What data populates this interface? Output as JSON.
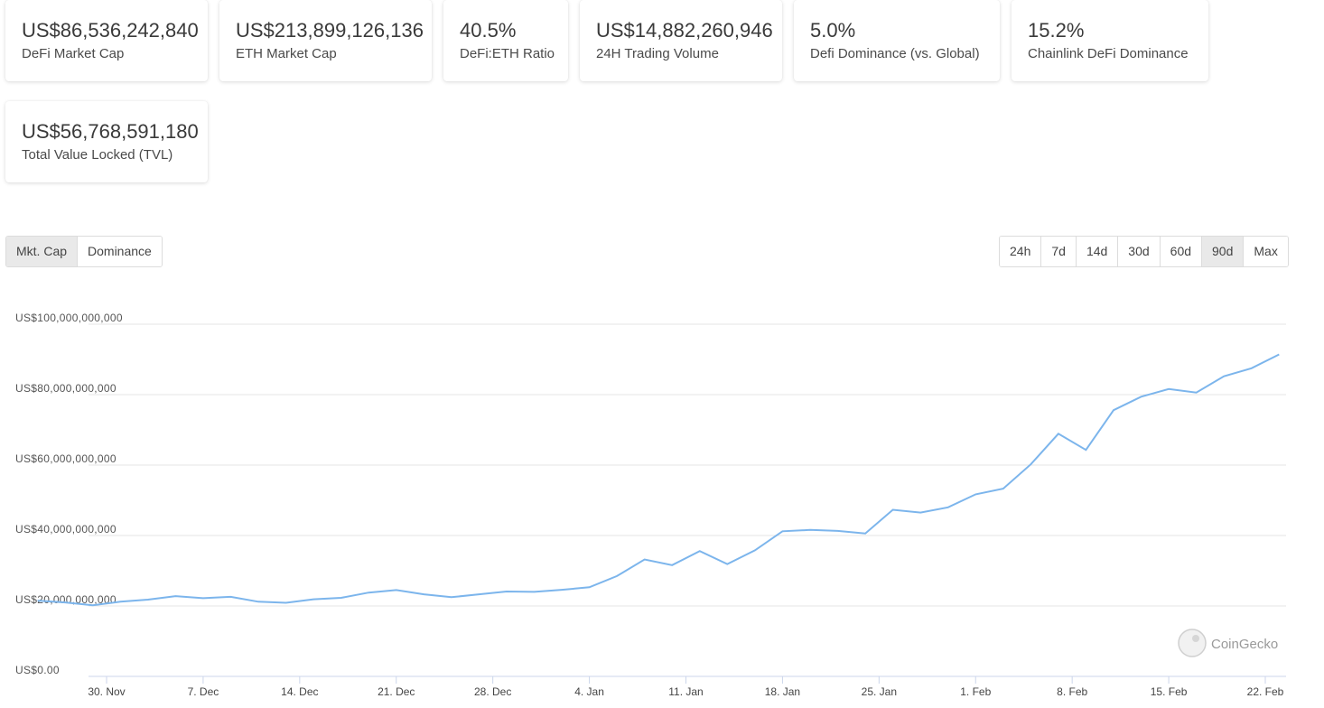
{
  "stats": [
    {
      "value": "US$86,536,242,840",
      "label": "DeFi Market Cap"
    },
    {
      "value": "US$213,899,126,136",
      "label": "ETH Market Cap"
    },
    {
      "value": "40.5%",
      "label": "DeFi:ETH Ratio"
    },
    {
      "value": "US$14,882,260,946",
      "label": "24H Trading Volume"
    },
    {
      "value": "5.0%",
      "label": "Defi Dominance (vs. Global)"
    },
    {
      "value": "15.2%",
      "label": "Chainlink DeFi Dominance"
    },
    {
      "value": "US$56,768,591,180",
      "label": "Total Value Locked (TVL)"
    }
  ],
  "view_tabs": {
    "mkt_cap": "Mkt. Cap",
    "dominance": "Dominance",
    "active": "Mkt. Cap"
  },
  "range_tabs": {
    "items": [
      "24h",
      "7d",
      "14d",
      "30d",
      "60d",
      "90d",
      "Max"
    ],
    "active": "90d"
  },
  "watermark": "CoinGecko",
  "chart_data": {
    "type": "line",
    "title": "",
    "xlabel": "",
    "ylabel": "",
    "y_ticks": [
      "US$0.00",
      "US$20,000,000,000",
      "US$40,000,000,000",
      "US$60,000,000,000",
      "US$80,000,000,000",
      "US$100,000,000,000"
    ],
    "x_ticks": [
      "30. Nov",
      "7. Dec",
      "14. Dec",
      "21. Dec",
      "28. Dec",
      "4. Jan",
      "11. Jan",
      "18. Jan",
      "25. Jan",
      "1. Feb",
      "8. Feb",
      "15. Feb",
      "22. Feb"
    ],
    "ylim": [
      0,
      100000000000
    ],
    "grid": true,
    "line_color": "#7cb5ec",
    "series": [
      {
        "x": [
          "2020-11-25",
          "2020-11-27",
          "2020-11-29",
          "2020-12-01",
          "2020-12-03",
          "2020-12-05",
          "2020-12-07",
          "2020-12-09",
          "2020-12-11",
          "2020-12-13",
          "2020-12-15",
          "2020-12-17",
          "2020-12-19",
          "2020-12-21",
          "2020-12-23",
          "2020-12-25",
          "2020-12-27",
          "2020-12-29",
          "2020-12-31",
          "2021-01-02",
          "2021-01-04",
          "2021-01-06",
          "2021-01-08",
          "2021-01-10",
          "2021-01-12",
          "2021-01-14",
          "2021-01-16",
          "2021-01-18",
          "2021-01-20",
          "2021-01-22",
          "2021-01-24",
          "2021-01-26",
          "2021-01-28",
          "2021-01-30",
          "2021-02-01",
          "2021-02-03",
          "2021-02-05",
          "2021-02-07",
          "2021-02-09",
          "2021-02-11",
          "2021-02-13",
          "2021-02-15",
          "2021-02-17",
          "2021-02-19",
          "2021-02-21",
          "2021-02-23"
        ],
        "y": [
          21500000000.0,
          21000000000.0,
          20200000000.0,
          21200000000.0,
          21800000000.0,
          22800000000.0,
          22200000000.0,
          22600000000.0,
          21200000000.0,
          20900000000.0,
          21900000000.0,
          22300000000.0,
          23800000000.0,
          24500000000.0,
          23300000000.0,
          22500000000.0,
          23300000000.0,
          24100000000.0,
          24000000000.0,
          24600000000.0,
          25300000000.0,
          28500000000.0,
          33200000000.0,
          31600000000.0,
          35600000000.0,
          31900000000.0,
          35800000000.0,
          41200000000.0,
          41600000000.0,
          41300000000.0,
          40600000000.0,
          47300000000.0,
          46500000000.0,
          48000000000.0,
          51700000000.0,
          53300000000.0,
          60200000000.0,
          68900000000.0,
          64300000000.0,
          75600000000.0,
          79400000000.0,
          81600000000.0,
          80600000000.0,
          85200000000.0,
          87500000000.0,
          91400000000.0
        ]
      }
    ]
  }
}
